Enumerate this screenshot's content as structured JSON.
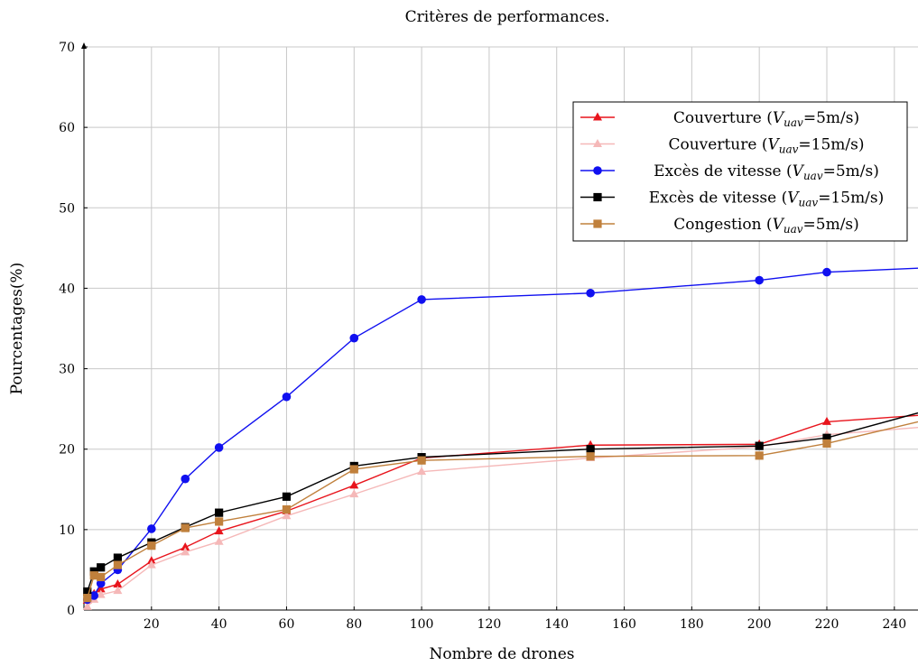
{
  "chart_data": {
    "type": "line",
    "title": "Critères de performances.",
    "xlabel": "Nombre de drones",
    "ylabel": "Pourcentages(%)",
    "xlim": [
      0,
      247
    ],
    "ylim": [
      0,
      70
    ],
    "xticks": [
      20,
      40,
      60,
      80,
      100,
      120,
      140,
      160,
      180,
      200,
      220,
      240
    ],
    "yticks": [
      0,
      10,
      20,
      30,
      40,
      50,
      60,
      70
    ],
    "grid": true,
    "legend_position": "top-right",
    "series": [
      {
        "name": "Couverture (V_uav=5m/s)",
        "legend_prefix": "Couverture (",
        "legend_sub": "uav",
        "legend_suffix": "=5m/s)",
        "color": "#e8141c",
        "marker": "triangle",
        "x": [
          1,
          3,
          5,
          10,
          20,
          30,
          40,
          60,
          80,
          100,
          150,
          200,
          220,
          247
        ],
        "y": [
          1.2,
          2.0,
          2.6,
          3.2,
          6.1,
          7.8,
          9.8,
          12.3,
          15.5,
          18.9,
          20.5,
          20.6,
          23.4,
          24.2
        ]
      },
      {
        "name": "Couverture (V_uav=15m/s)",
        "legend_prefix": "Couverture (",
        "legend_sub": "uav",
        "legend_suffix": "=15m/s)",
        "color": "#f5b8b8",
        "marker": "triangle",
        "x": [
          1,
          3,
          5,
          10,
          20,
          30,
          40,
          60,
          80,
          100,
          150,
          200,
          220,
          247
        ],
        "y": [
          0.4,
          1.3,
          1.9,
          2.4,
          5.6,
          7.2,
          8.5,
          11.7,
          14.4,
          17.2,
          18.9,
          20.3,
          21.8,
          22.7
        ]
      },
      {
        "name": "Excès de vitesse (V_uav=5m/s)",
        "legend_prefix": "Excès de vitesse (",
        "legend_sub": "uav",
        "legend_suffix": "=5m/s)",
        "color": "#1010f0",
        "marker": "circle",
        "x": [
          1,
          3,
          5,
          10,
          20,
          30,
          40,
          60,
          80,
          100,
          150,
          200,
          220,
          247
        ],
        "y": [
          1.3,
          1.8,
          3.3,
          5.0,
          10.1,
          16.3,
          20.2,
          26.5,
          33.8,
          38.6,
          39.4,
          41.0,
          42.0,
          42.5
        ]
      },
      {
        "name": "Excès de vitesse (V_uav=15m/s)",
        "legend_prefix": "Excès de vitesse (",
        "legend_sub": "uav",
        "legend_suffix": "=15m/s)",
        "color": "#000000",
        "marker": "square",
        "x": [
          1,
          3,
          5,
          10,
          20,
          30,
          40,
          60,
          80,
          100,
          150,
          200,
          220,
          247
        ],
        "y": [
          2.3,
          4.8,
          5.3,
          6.5,
          8.4,
          10.3,
          12.1,
          14.1,
          17.9,
          19.0,
          20.0,
          20.4,
          21.4,
          24.5
        ]
      },
      {
        "name": "Congestion (V_uav=5m/s)",
        "legend_prefix": "Congestion (",
        "legend_sub": "uav",
        "legend_suffix": "=5m/s)",
        "color": "#c0803c",
        "marker": "square",
        "x": [
          1,
          3,
          5,
          10,
          20,
          30,
          40,
          60,
          80,
          100,
          150,
          200,
          220,
          247
        ],
        "y": [
          1.5,
          4.3,
          4.1,
          5.6,
          8.0,
          10.2,
          11.0,
          12.5,
          17.5,
          18.6,
          19.1,
          19.2,
          20.7,
          23.4
        ]
      }
    ]
  }
}
